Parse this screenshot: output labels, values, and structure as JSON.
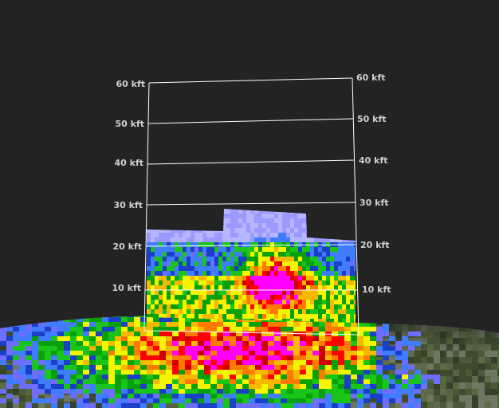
{
  "scene": {
    "background_color": "#232323",
    "frame_color": "#ffffff",
    "altitude_labels_left": [
      "60 kft",
      "50 kft",
      "40 kft",
      "30 kft",
      "20 kft",
      "10 kft"
    ],
    "altitude_labels_right": [
      "60 kft",
      "50 kft",
      "40 kft",
      "30 kft",
      "20 kft",
      "10 kft"
    ],
    "reflectivity_palette": [
      "#9a9aff",
      "#6d6dff",
      "#3f7cff",
      "#1b3fc7",
      "#19c519",
      "#0aa00a",
      "#f5f500",
      "#f6b800",
      "#ff7b00",
      "#ff0000",
      "#cc0000",
      "#ff00ff",
      "#b000c8"
    ]
  }
}
